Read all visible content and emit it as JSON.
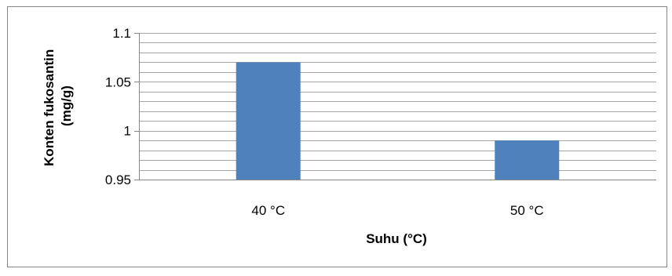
{
  "chart_data": {
    "type": "bar",
    "categories": [
      "40 °C",
      "50 °C"
    ],
    "values": [
      1.07,
      0.99
    ],
    "xlabel": "Suhu (°C)",
    "ylabel_lines": [
      "Konten fukosantin",
      "(mg/g)"
    ],
    "ylim": [
      0.95,
      1.1
    ],
    "major_ticks": [
      0.95,
      1,
      1.05,
      1.1
    ],
    "major_tick_labels": [
      "0.95",
      "1",
      "1.05",
      "1.1"
    ],
    "minor_step": 0.01,
    "grid": true,
    "legend": "none",
    "bar_color": "#4f81bd",
    "grid_color": "#a6a6a6",
    "axis_color": "#868686"
  }
}
